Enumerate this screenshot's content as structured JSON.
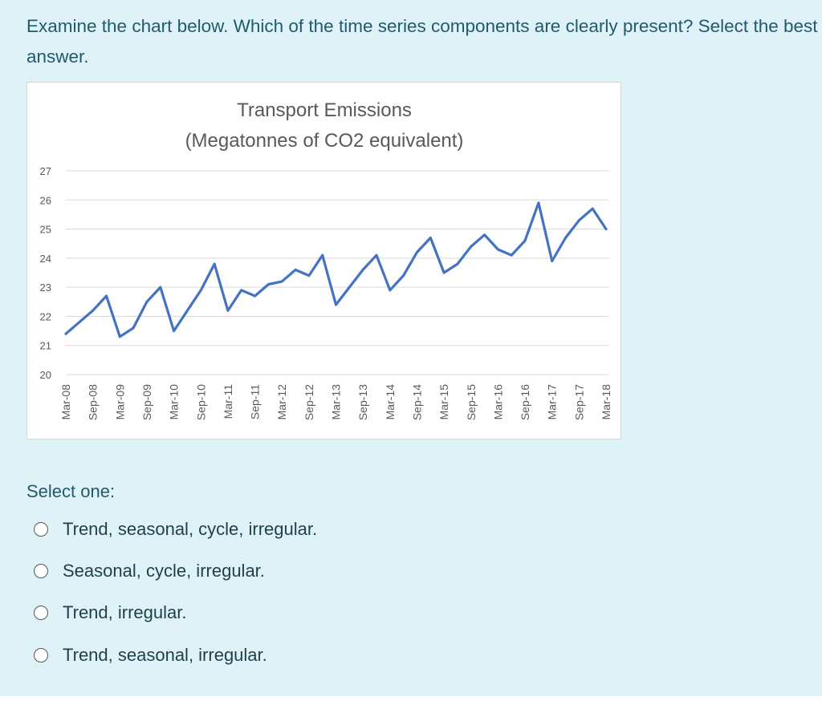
{
  "question": {
    "text": "Examine the chart below. Which of the time series components are clearly present? Select the best answer."
  },
  "chart_data": {
    "type": "line",
    "title": "Transport Emissions",
    "subtitle": "(Megatonnes of CO2 equivalent)",
    "xlabel": "",
    "ylabel": "",
    "ylim": [
      20,
      27
    ],
    "y_ticks": [
      "20",
      "21",
      "22",
      "23",
      "24",
      "25",
      "26",
      "27"
    ],
    "x_tick_labels": [
      "Mar-08",
      "Sep-08",
      "Mar-09",
      "Sep-09",
      "Mar-10",
      "Sep-10",
      "Mar-11",
      "Sep-11",
      "Mar-12",
      "Sep-12",
      "Mar-13",
      "Sep-13",
      "Mar-14",
      "Sep-14",
      "Mar-15",
      "Sep-15",
      "Mar-16",
      "Sep-16",
      "Mar-17",
      "Sep-17",
      "Mar-18"
    ],
    "grid": true,
    "legend": "none",
    "color": "#4472c4",
    "series": [
      {
        "values": [
          21.4,
          21.8,
          22.2,
          22.7,
          21.3,
          21.6,
          22.5,
          23.0,
          21.5,
          22.2,
          22.9,
          23.8,
          22.2,
          22.9,
          22.7,
          23.1,
          23.2,
          23.6,
          23.4,
          24.1,
          22.4,
          23.0,
          23.6,
          24.1,
          22.9,
          23.4,
          24.2,
          24.7,
          23.5,
          23.8,
          24.4,
          24.8,
          24.3,
          24.1,
          24.6,
          25.9,
          23.9,
          24.7,
          25.3,
          25.7,
          25.0
        ]
      }
    ]
  },
  "answer": {
    "prompt": "Select one:",
    "options": [
      "Trend, seasonal, cycle, irregular.",
      "Seasonal, cycle, irregular.",
      "Trend, irregular.",
      "Trend, seasonal, irregular."
    ]
  }
}
